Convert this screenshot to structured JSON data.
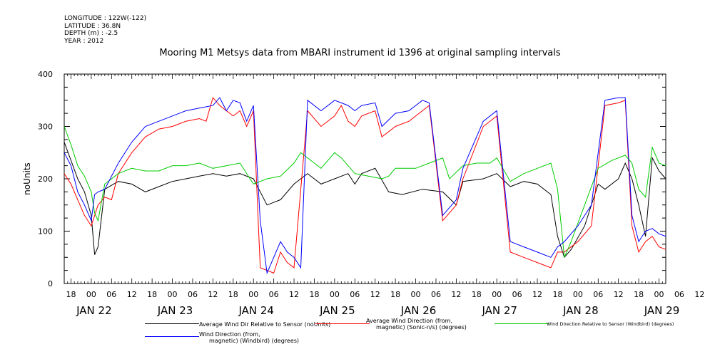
{
  "metadata": [
    "LONGITUDE : 122W(-122)",
    "LATITUDE : 36.8N",
    "DEPTH (m) : -2.5",
    "YEAR : 2012"
  ],
  "chart_data": {
    "type": "line",
    "title": "Mooring M1 Metsys data from MBARI instrument id 1396 at original sampling intervals",
    "ylabel": "noUnits",
    "ylim": [
      0,
      400
    ],
    "yticks": [
      0,
      100,
      200,
      300,
      400
    ],
    "xlim_hours": [
      -8,
      170
    ],
    "hour_ticks": [
      "18",
      "00",
      "06",
      "12",
      "18",
      "00",
      "06",
      "12",
      "18",
      "00",
      "06",
      "12",
      "18",
      "00",
      "06",
      "12",
      "18",
      "00",
      "06",
      "12",
      "18",
      "00",
      "06",
      "12",
      "18",
      "00",
      "06",
      "12",
      "18",
      "00",
      "06",
      "12"
    ],
    "day_labels": [
      "JAN 22",
      "JAN 23",
      "JAN 24",
      "JAN 25",
      "JAN 26",
      "JAN 27",
      "JAN 28",
      "JAN 29"
    ],
    "series": [
      {
        "name": "Average Wind Dir Relative to Sensor (noUnits)",
        "color": "#000000",
        "points": [
          [
            -8,
            270
          ],
          [
            -6,
            235
          ],
          [
            -4,
            200
          ],
          [
            -2,
            175
          ],
          [
            0,
            130
          ],
          [
            1,
            55
          ],
          [
            2,
            70
          ],
          [
            4,
            180
          ],
          [
            8,
            195
          ],
          [
            12,
            190
          ],
          [
            16,
            175
          ],
          [
            20,
            185
          ],
          [
            24,
            195
          ],
          [
            28,
            200
          ],
          [
            32,
            205
          ],
          [
            36,
            210
          ],
          [
            40,
            205
          ],
          [
            44,
            210
          ],
          [
            48,
            200
          ],
          [
            52,
            150
          ],
          [
            56,
            160
          ],
          [
            60,
            190
          ],
          [
            64,
            210
          ],
          [
            68,
            190
          ],
          [
            72,
            200
          ],
          [
            76,
            210
          ],
          [
            78,
            190
          ],
          [
            80,
            210
          ],
          [
            84,
            220
          ],
          [
            88,
            175
          ],
          [
            92,
            170
          ],
          [
            98,
            180
          ],
          [
            104,
            175
          ],
          [
            108,
            150
          ],
          [
            110,
            195
          ],
          [
            116,
            200
          ],
          [
            120,
            210
          ],
          [
            124,
            185
          ],
          [
            128,
            195
          ],
          [
            132,
            190
          ],
          [
            136,
            170
          ],
          [
            138,
            90
          ],
          [
            140,
            50
          ],
          [
            142,
            65
          ],
          [
            146,
            110
          ],
          [
            150,
            190
          ],
          [
            152,
            180
          ],
          [
            156,
            200
          ],
          [
            158,
            230
          ],
          [
            160,
            200
          ],
          [
            162,
            150
          ],
          [
            164,
            90
          ],
          [
            166,
            240
          ],
          [
            168,
            215
          ],
          [
            170,
            200
          ]
        ]
      },
      {
        "name": "Average Wind Direction (from, magnetic) (Sonic-n/s) (degrees)",
        "color": "#ff0000",
        "points": [
          [
            -8,
            210
          ],
          [
            -6,
            190
          ],
          [
            -4,
            160
          ],
          [
            -2,
            130
          ],
          [
            0,
            110
          ],
          [
            2,
            150
          ],
          [
            4,
            165
          ],
          [
            6,
            160
          ],
          [
            8,
            210
          ],
          [
            12,
            250
          ],
          [
            16,
            280
          ],
          [
            20,
            295
          ],
          [
            24,
            300
          ],
          [
            28,
            310
          ],
          [
            32,
            315
          ],
          [
            34,
            310
          ],
          [
            36,
            355
          ],
          [
            38,
            340
          ],
          [
            40,
            330
          ],
          [
            42,
            320
          ],
          [
            44,
            330
          ],
          [
            46,
            300
          ],
          [
            48,
            330
          ],
          [
            50,
            30
          ],
          [
            54,
            20
          ],
          [
            56,
            60
          ],
          [
            58,
            40
          ],
          [
            60,
            30
          ],
          [
            64,
            330
          ],
          [
            68,
            300
          ],
          [
            72,
            320
          ],
          [
            74,
            340
          ],
          [
            76,
            310
          ],
          [
            78,
            300
          ],
          [
            80,
            320
          ],
          [
            84,
            330
          ],
          [
            86,
            280
          ],
          [
            90,
            300
          ],
          [
            94,
            310
          ],
          [
            98,
            330
          ],
          [
            100,
            340
          ],
          [
            104,
            120
          ],
          [
            108,
            150
          ],
          [
            110,
            200
          ],
          [
            116,
            300
          ],
          [
            120,
            320
          ],
          [
            124,
            60
          ],
          [
            128,
            50
          ],
          [
            132,
            40
          ],
          [
            136,
            30
          ],
          [
            138,
            60
          ],
          [
            140,
            60
          ],
          [
            144,
            80
          ],
          [
            148,
            110
          ],
          [
            152,
            340
          ],
          [
            156,
            345
          ],
          [
            158,
            350
          ],
          [
            160,
            110
          ],
          [
            162,
            60
          ],
          [
            164,
            80
          ],
          [
            166,
            90
          ],
          [
            168,
            70
          ],
          [
            170,
            65
          ]
        ]
      },
      {
        "name": "Wind Direction Relative to Sensor (Windbird) (degrees)",
        "color": "#00cc00",
        "points": [
          [
            -8,
            300
          ],
          [
            -6,
            265
          ],
          [
            -4,
            225
          ],
          [
            -2,
            205
          ],
          [
            0,
            175
          ],
          [
            1,
            135
          ],
          [
            2,
            120
          ],
          [
            4,
            190
          ],
          [
            8,
            210
          ],
          [
            12,
            220
          ],
          [
            16,
            215
          ],
          [
            20,
            215
          ],
          [
            24,
            225
          ],
          [
            28,
            225
          ],
          [
            32,
            230
          ],
          [
            36,
            220
          ],
          [
            40,
            225
          ],
          [
            44,
            230
          ],
          [
            48,
            190
          ],
          [
            52,
            200
          ],
          [
            56,
            205
          ],
          [
            60,
            230
          ],
          [
            62,
            250
          ],
          [
            64,
            240
          ],
          [
            66,
            230
          ],
          [
            68,
            220
          ],
          [
            72,
            250
          ],
          [
            74,
            240
          ],
          [
            76,
            225
          ],
          [
            78,
            210
          ],
          [
            82,
            205
          ],
          [
            86,
            200
          ],
          [
            88,
            205
          ],
          [
            90,
            220
          ],
          [
            96,
            220
          ],
          [
            100,
            230
          ],
          [
            104,
            240
          ],
          [
            106,
            200
          ],
          [
            110,
            225
          ],
          [
            114,
            230
          ],
          [
            118,
            230
          ],
          [
            120,
            240
          ],
          [
            124,
            195
          ],
          [
            128,
            210
          ],
          [
            132,
            220
          ],
          [
            136,
            230
          ],
          [
            138,
            180
          ],
          [
            140,
            50
          ],
          [
            142,
            80
          ],
          [
            146,
            150
          ],
          [
            150,
            220
          ],
          [
            154,
            235
          ],
          [
            158,
            245
          ],
          [
            160,
            230
          ],
          [
            162,
            180
          ],
          [
            164,
            165
          ],
          [
            166,
            260
          ],
          [
            168,
            230
          ],
          [
            170,
            225
          ]
        ]
      },
      {
        "name": "Wind Direction (from, magnetic) (Windbird) (degrees)",
        "color": "#0000ff",
        "points": [
          [
            -8,
            250
          ],
          [
            -6,
            225
          ],
          [
            -4,
            175
          ],
          [
            -2,
            150
          ],
          [
            0,
            120
          ],
          [
            1,
            170
          ],
          [
            2,
            175
          ],
          [
            4,
            180
          ],
          [
            8,
            230
          ],
          [
            12,
            270
          ],
          [
            16,
            300
          ],
          [
            20,
            310
          ],
          [
            24,
            320
          ],
          [
            28,
            330
          ],
          [
            32,
            335
          ],
          [
            36,
            340
          ],
          [
            38,
            355
          ],
          [
            40,
            330
          ],
          [
            42,
            350
          ],
          [
            44,
            345
          ],
          [
            46,
            310
          ],
          [
            48,
            340
          ],
          [
            50,
            120
          ],
          [
            52,
            20
          ],
          [
            56,
            80
          ],
          [
            58,
            60
          ],
          [
            60,
            50
          ],
          [
            62,
            30
          ],
          [
            64,
            350
          ],
          [
            68,
            330
          ],
          [
            72,
            350
          ],
          [
            74,
            345
          ],
          [
            76,
            340
          ],
          [
            78,
            330
          ],
          [
            80,
            340
          ],
          [
            84,
            345
          ],
          [
            86,
            300
          ],
          [
            90,
            325
          ],
          [
            94,
            330
          ],
          [
            98,
            350
          ],
          [
            100,
            345
          ],
          [
            104,
            130
          ],
          [
            108,
            160
          ],
          [
            110,
            220
          ],
          [
            116,
            310
          ],
          [
            120,
            330
          ],
          [
            124,
            80
          ],
          [
            128,
            70
          ],
          [
            132,
            60
          ],
          [
            136,
            50
          ],
          [
            138,
            70
          ],
          [
            140,
            80
          ],
          [
            144,
            110
          ],
          [
            148,
            150
          ],
          [
            152,
            350
          ],
          [
            156,
            355
          ],
          [
            158,
            355
          ],
          [
            160,
            130
          ],
          [
            162,
            80
          ],
          [
            164,
            100
          ],
          [
            166,
            105
          ],
          [
            168,
            95
          ],
          [
            170,
            90
          ]
        ]
      }
    ],
    "legend": [
      {
        "label_lines": [
          "Average Wind Dir Relative to Sensor (noUnits)"
        ],
        "color": "#000000"
      },
      {
        "label_lines": [
          "Average Wind Direction (from,",
          "magnetic) (Sonic-n/s) (degrees)"
        ],
        "color": "#ff0000"
      },
      {
        "label_lines": [
          "Wind Direction Relative to Sensor (Windbird) (degrees)"
        ],
        "color": "#00cc00"
      },
      {
        "label_lines": [
          "Wind Direction (from,",
          "magnetic) (Windbird) (degrees)"
        ],
        "color": "#0000ff"
      }
    ]
  }
}
